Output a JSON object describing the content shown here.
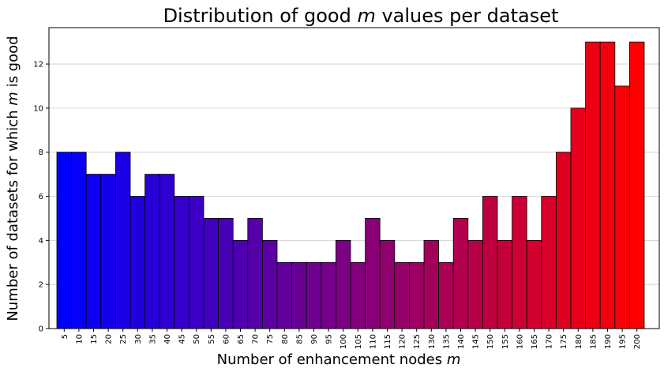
{
  "chart_data": {
    "type": "bar",
    "title_prefix": "Distribution of good ",
    "title_var": "m",
    "title_suffix": " values per dataset",
    "xlabel_prefix": "Number of enhancement nodes ",
    "xlabel_var": "m",
    "ylabel_prefix": "Number of datasets for which ",
    "ylabel_var": "m",
    "ylabel_suffix": " is good",
    "categories": [
      "5",
      "10",
      "15",
      "20",
      "25",
      "30",
      "35",
      "40",
      "45",
      "50",
      "55",
      "60",
      "65",
      "70",
      "75",
      "80",
      "85",
      "90",
      "95",
      "100",
      "105",
      "110",
      "115",
      "120",
      "125",
      "130",
      "135",
      "140",
      "145",
      "150",
      "155",
      "160",
      "165",
      "170",
      "175",
      "180",
      "185",
      "190",
      "195",
      "200"
    ],
    "values": [
      8,
      8,
      7,
      7,
      8,
      6,
      7,
      7,
      6,
      6,
      5,
      5,
      4,
      5,
      4,
      3,
      3,
      3,
      3,
      4,
      3,
      5,
      4,
      3,
      3,
      4,
      3,
      5,
      4,
      6,
      4,
      6,
      4,
      6,
      8,
      10,
      13,
      13,
      11,
      13
    ],
    "yticks": [
      "0",
      "2",
      "4",
      "6",
      "8",
      "10",
      "12"
    ],
    "ylim": [
      0,
      13.65
    ],
    "grid": "horizontal",
    "color_start": "#0000ff",
    "color_end": "#ff0000"
  }
}
